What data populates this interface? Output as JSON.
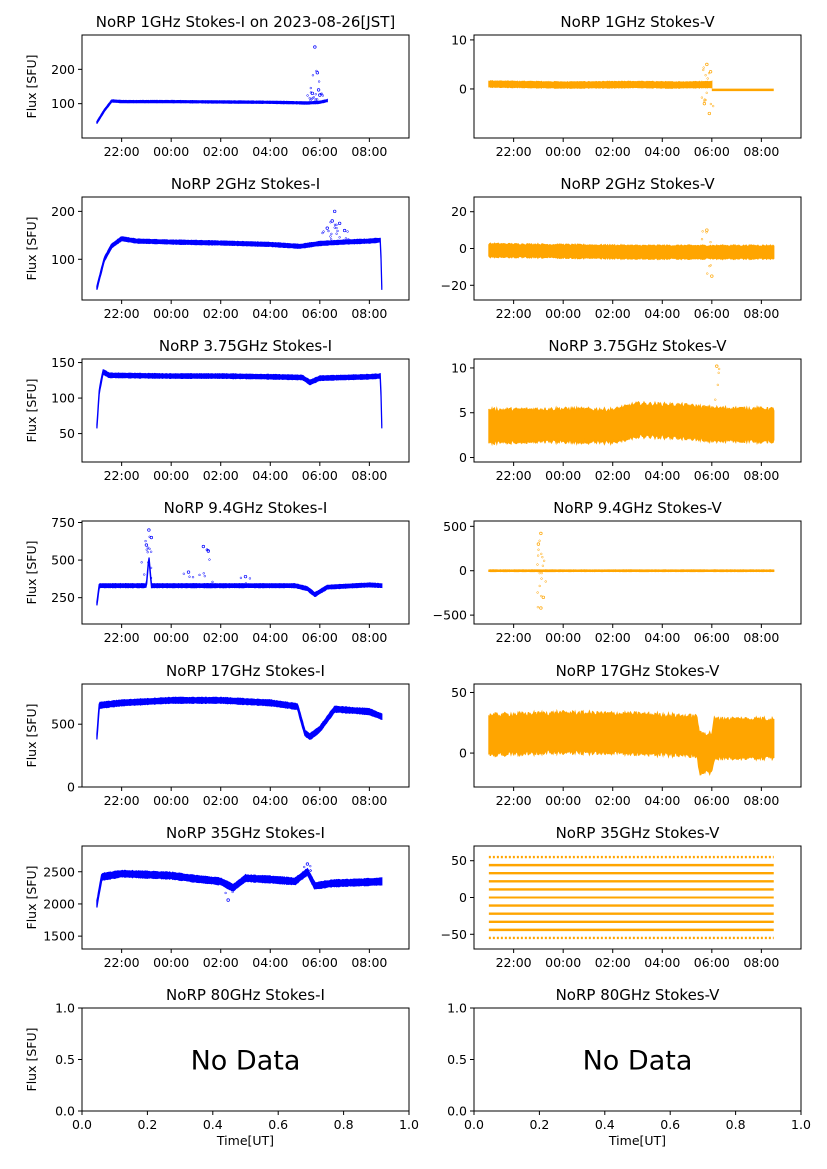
{
  "figure": {
    "ylabel": "Flux [SFU]",
    "xlabel": "Time[UT]",
    "time_ticks": [
      "22:00",
      "00:00",
      "02:00",
      "04:00",
      "06:00",
      "08:00"
    ],
    "time_tick_hours": [
      22,
      24,
      26,
      28,
      30,
      32
    ],
    "time_range_hours": [
      20.4,
      33.6
    ],
    "data_span_hours": [
      21.0,
      32.5
    ]
  },
  "colors": {
    "stokes_i": "#0000ff",
    "stokes_v": "#ffa500"
  },
  "chart_data": [
    {
      "type": "scatter",
      "title": "NoRP 1GHz Stokes-I on 2023-08-26[JST]",
      "ylabel": "Flux [SFU]",
      "ylim": [
        0,
        300
      ],
      "yticks": [
        100,
        200
      ],
      "color": "#0000ff",
      "profile": [
        [
          21.0,
          45
        ],
        [
          21.3,
          80
        ],
        [
          21.6,
          108
        ],
        [
          22,
          106
        ],
        [
          24,
          106
        ],
        [
          26,
          105
        ],
        [
          28,
          104
        ],
        [
          28.8,
          103
        ],
        [
          29.5,
          102
        ],
        [
          30.0,
          104
        ],
        [
          30.3,
          109
        ]
      ],
      "band": 3,
      "end_hour": 30.3,
      "outliers": [
        [
          29.8,
          265
        ],
        [
          29.9,
          190
        ],
        [
          29.95,
          140
        ],
        [
          29.7,
          130
        ],
        [
          30.0,
          125
        ]
      ]
    },
    {
      "type": "scatter",
      "title": "NoRP 1GHz Stokes-V",
      "ylabel": "",
      "ylim": [
        -10,
        11
      ],
      "yticks": [
        0,
        10
      ],
      "color": "#ffa500",
      "profile": [
        [
          21.0,
          1.0
        ],
        [
          24,
          0.8
        ],
        [
          27,
          0.9
        ],
        [
          28.5,
          0.8
        ],
        [
          30.0,
          0.9
        ]
      ],
      "band": 0.6,
      "end_hour": 30.0,
      "flat_after": [
        30.0,
        32.5,
        -0.2
      ],
      "outliers": [
        [
          29.8,
          5
        ],
        [
          29.9,
          -5
        ],
        [
          29.95,
          3.5
        ],
        [
          29.7,
          -3
        ]
      ]
    },
    {
      "type": "scatter",
      "title": "NoRP 2GHz Stokes-I",
      "ylabel": "Flux [SFU]",
      "ylim": [
        15,
        230
      ],
      "yticks": [
        100,
        200
      ],
      "color": "#0000ff",
      "profile": [
        [
          21.0,
          40
        ],
        [
          21.3,
          100
        ],
        [
          21.6,
          128
        ],
        [
          22,
          143
        ],
        [
          22.6,
          138
        ],
        [
          24,
          136
        ],
        [
          26,
          134
        ],
        [
          28,
          131
        ],
        [
          29.2,
          127
        ],
        [
          30,
          133
        ],
        [
          31,
          136
        ],
        [
          32,
          138
        ],
        [
          32.45,
          140
        ],
        [
          32.5,
          40
        ]
      ],
      "band": 4,
      "end_hour": 32.5,
      "outliers": [
        [
          30.3,
          165
        ],
        [
          30.5,
          180
        ],
        [
          30.8,
          175
        ],
        [
          30.6,
          200
        ],
        [
          31.0,
          160
        ]
      ]
    },
    {
      "type": "scatter",
      "title": "NoRP 2GHz Stokes-V",
      "ylabel": "",
      "ylim": [
        -28,
        28
      ],
      "yticks": [
        -20,
        0,
        20
      ],
      "color": "#ffa500",
      "profile": [
        [
          21.0,
          -1
        ],
        [
          24,
          -1.5
        ],
        [
          27,
          -2
        ],
        [
          30,
          -2
        ],
        [
          32.5,
          -2
        ]
      ],
      "band": 3.5,
      "end_hour": 32.5,
      "outliers": [
        [
          30.0,
          -15
        ],
        [
          29.8,
          10
        ]
      ]
    },
    {
      "type": "scatter",
      "title": "NoRP 3.75GHz Stokes-I",
      "ylabel": "Flux [SFU]",
      "ylim": [
        10,
        155
      ],
      "yticks": [
        50,
        100,
        150
      ],
      "color": "#0000ff",
      "profile": [
        [
          21.0,
          60
        ],
        [
          21.1,
          110
        ],
        [
          21.25,
          137
        ],
        [
          21.5,
          132
        ],
        [
          24,
          131
        ],
        [
          26,
          131
        ],
        [
          28,
          130
        ],
        [
          29.3,
          129
        ],
        [
          29.6,
          122
        ],
        [
          30,
          128
        ],
        [
          32,
          130
        ],
        [
          32.45,
          131
        ],
        [
          32.5,
          60
        ]
      ],
      "band": 3,
      "end_hour": 32.5,
      "outliers": []
    },
    {
      "type": "scatter",
      "title": "NoRP 3.75GHz Stokes-V",
      "ylabel": "",
      "ylim": [
        -0.5,
        11
      ],
      "yticks": [
        0,
        5,
        10
      ],
      "color": "#ffa500",
      "profile": [
        [
          21.0,
          3.5
        ],
        [
          24,
          3.6
        ],
        [
          26,
          3.5
        ],
        [
          27,
          4.2
        ],
        [
          29,
          4.0
        ],
        [
          30,
          3.7
        ],
        [
          32.5,
          3.6
        ]
      ],
      "band": 1.8,
      "end_hour": 32.5,
      "outliers": [
        [
          30.2,
          10.2
        ]
      ]
    },
    {
      "type": "scatter",
      "title": "NoRP 9.4GHz Stokes-I",
      "ylabel": "Flux [SFU]",
      "ylim": [
        75,
        760
      ],
      "yticks": [
        250,
        500,
        750
      ],
      "color": "#0000ff",
      "profile": [
        [
          21.0,
          210
        ],
        [
          21.1,
          330
        ],
        [
          22,
          330
        ],
        [
          23.0,
          330
        ],
        [
          23.1,
          520
        ],
        [
          23.2,
          330
        ],
        [
          26,
          330
        ],
        [
          29,
          330
        ],
        [
          29.5,
          310
        ],
        [
          29.8,
          270
        ],
        [
          30.3,
          320
        ],
        [
          32,
          335
        ],
        [
          32.5,
          330
        ]
      ],
      "band": 12,
      "end_hour": 32.5,
      "outliers": [
        [
          23.1,
          700
        ],
        [
          23.2,
          650
        ],
        [
          23.0,
          600
        ],
        [
          25.5,
          560
        ],
        [
          25.3,
          590
        ],
        [
          24.7,
          420
        ],
        [
          27.0,
          390
        ]
      ]
    },
    {
      "type": "scatter",
      "title": "NoRP 9.4GHz Stokes-V",
      "ylabel": "",
      "ylim": [
        -600,
        560
      ],
      "yticks": [
        -500,
        0,
        500
      ],
      "color": "#ffa500",
      "profile": [
        [
          21.0,
          0
        ],
        [
          32.5,
          0
        ]
      ],
      "band": 8,
      "end_hour": 32.5,
      "outliers": [
        [
          23.1,
          420
        ],
        [
          23.1,
          -420
        ],
        [
          23.0,
          300
        ],
        [
          23.2,
          -300
        ]
      ]
    },
    {
      "type": "scatter",
      "title": "NoRP 17GHz Stokes-I",
      "ylabel": "Flux [SFU]",
      "ylim": [
        0,
        820
      ],
      "yticks": [
        0,
        500
      ],
      "color": "#0000ff",
      "profile": [
        [
          21.0,
          400
        ],
        [
          21.1,
          650
        ],
        [
          22,
          670
        ],
        [
          24,
          690
        ],
        [
          26,
          690
        ],
        [
          28,
          670
        ],
        [
          29.1,
          640
        ],
        [
          29.4,
          430
        ],
        [
          29.6,
          400
        ],
        [
          30,
          460
        ],
        [
          30.6,
          620
        ],
        [
          32,
          600
        ],
        [
          32.5,
          560
        ]
      ],
      "band": 22,
      "end_hour": 32.5,
      "outliers": []
    },
    {
      "type": "scatter",
      "title": "NoRP 17GHz Stokes-V",
      "ylabel": "",
      "ylim": [
        -28,
        57
      ],
      "yticks": [
        0,
        50
      ],
      "color": "#ffa500",
      "profile": [
        [
          21.0,
          15
        ],
        [
          24,
          17
        ],
        [
          27,
          16
        ],
        [
          29.4,
          14
        ],
        [
          29.5,
          0
        ],
        [
          30.0,
          0
        ],
        [
          30.1,
          12
        ],
        [
          32.5,
          12
        ]
      ],
      "band": 16,
      "end_hour": 32.5,
      "outliers": []
    },
    {
      "type": "scatter",
      "title": "NoRP 35GHz Stokes-I",
      "ylabel": "Flux [SFU]",
      "ylim": [
        1300,
        2900
      ],
      "yticks": [
        1500,
        2000,
        2500
      ],
      "color": "#0000ff",
      "profile": [
        [
          21.0,
          2000
        ],
        [
          21.2,
          2420
        ],
        [
          22,
          2470
        ],
        [
          24,
          2440
        ],
        [
          25,
          2390
        ],
        [
          26,
          2350
        ],
        [
          26.5,
          2250
        ],
        [
          27,
          2400
        ],
        [
          28,
          2380
        ],
        [
          29,
          2350
        ],
        [
          29.5,
          2500
        ],
        [
          29.8,
          2280
        ],
        [
          30.5,
          2320
        ],
        [
          32,
          2340
        ],
        [
          32.5,
          2350
        ]
      ],
      "band": 50,
      "end_hour": 32.5,
      "outliers": [
        [
          29.5,
          2620
        ],
        [
          26.3,
          2060
        ]
      ]
    },
    {
      "type": "scatter",
      "title": "NoRP 35GHz Stokes-V",
      "ylabel": "",
      "ylim": [
        -70,
        70
      ],
      "yticks": [
        -50,
        0,
        50
      ],
      "color": "#ffa500",
      "levels": [
        -55,
        -44,
        -33,
        -22,
        -11,
        0,
        11,
        22,
        33,
        44,
        55
      ]
    },
    {
      "type": "empty",
      "title": "NoRP 80GHz Stokes-I",
      "ylabel": "Flux [SFU]",
      "xlabel": "Time[UT]",
      "xlim": [
        0,
        1
      ],
      "ylim": [
        0,
        1
      ],
      "xticks": [
        "0.0",
        "0.2",
        "0.4",
        "0.6",
        "0.8",
        "1.0"
      ],
      "yticks": [
        "0.0",
        "0.5",
        "1.0"
      ],
      "message": "No Data"
    },
    {
      "type": "empty",
      "title": "NoRP 80GHz Stokes-V",
      "ylabel": "",
      "xlabel": "Time[UT]",
      "xlim": [
        0,
        1
      ],
      "ylim": [
        0,
        1
      ],
      "xticks": [
        "0.0",
        "0.2",
        "0.4",
        "0.6",
        "0.8",
        "1.0"
      ],
      "yticks": [
        "0.0",
        "0.5",
        "1.0"
      ],
      "message": "No Data"
    }
  ]
}
